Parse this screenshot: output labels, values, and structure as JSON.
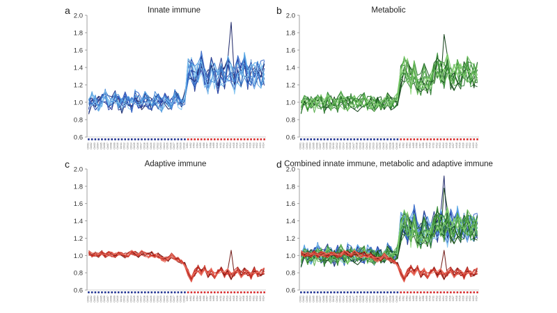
{
  "chart_data": [
    {
      "type": "line",
      "panel_letter": "a",
      "title": "Innate immune",
      "ylim": [
        0.6,
        2.0
      ],
      "yticks": [
        "0.6",
        "0.8",
        "1.0",
        "1.2",
        "1.4",
        "1.6",
        "1.8",
        "2.0"
      ],
      "grid": false,
      "colors": [
        "#1a2466",
        "#22348a",
        "#2c4bb0",
        "#3567c8",
        "#3f86d6",
        "#58a6e4",
        "#86c5f0"
      ],
      "summary_series": [
        {
          "name": "",
          "segment": "control",
          "values": [
            0.95,
            1.05,
            1.0,
            0.98,
            1.02,
            1.08,
            1.0,
            0.98,
            1.05,
            1.0,
            0.96,
            1.03,
            1.0,
            0.97,
            1.06,
            1.02,
            0.99,
            1.04,
            1.0,
            0.98,
            1.05,
            1.01,
            0.97,
            1.03,
            1.0,
            0.98,
            1.06,
            1.02,
            1.0,
            1.04
          ]
        },
        {
          "name": "",
          "segment": "case",
          "values": [
            1.35,
            1.4,
            1.28,
            1.32,
            1.45,
            1.3,
            1.22,
            1.38,
            1.3,
            1.25,
            1.35,
            1.28,
            1.4,
            1.32,
            1.25,
            1.38,
            1.3,
            1.42,
            1.28,
            1.35,
            1.3,
            1.36,
            1.32,
            1.34
          ]
        }
      ],
      "peak_value": 1.92,
      "min_value": 0.8,
      "n_control": 30,
      "n_case": 24
    },
    {
      "type": "line",
      "panel_letter": "b",
      "title": "Metabolic",
      "ylim": [
        0.6,
        2.0
      ],
      "yticks": [
        "0.6",
        "0.8",
        "1.0",
        "1.2",
        "1.4",
        "1.6",
        "1.8",
        "2.0"
      ],
      "grid": false,
      "colors": [
        "#0f3d14",
        "#1e5a22",
        "#2e7a32",
        "#3f963f",
        "#55ad4a",
        "#6fc45e",
        "#8fd77c"
      ],
      "summary_series": [
        {
          "name": "",
          "segment": "control",
          "values": [
            0.95,
            1.0,
            0.98,
            1.02,
            0.97,
            1.01,
            1.0,
            0.96,
            1.03,
            0.99,
            1.0,
            0.97,
            1.04,
            1.0,
            0.98,
            1.02,
            1.0,
            0.97,
            1.01,
            1.03,
            0.99,
            1.0,
            0.98,
            1.02,
            1.0,
            0.97,
            1.03,
            1.0,
            1.02,
            1.05
          ]
        },
        {
          "name": "",
          "segment": "case",
          "values": [
            1.28,
            1.38,
            1.35,
            1.25,
            1.32,
            1.22,
            1.18,
            1.3,
            1.24,
            1.2,
            1.32,
            1.42,
            1.36,
            1.3,
            1.4,
            1.3,
            1.28,
            1.36,
            1.3,
            1.34,
            1.38,
            1.32,
            1.3,
            1.33
          ]
        }
      ],
      "peak_value": 1.78,
      "min_value": 0.76,
      "n_control": 30,
      "n_case": 24
    },
    {
      "type": "line",
      "panel_letter": "c",
      "title": "Adaptive immune",
      "ylim": [
        0.6,
        2.0
      ],
      "yticks": [
        "0.6",
        "0.8",
        "1.0",
        "1.2",
        "1.4",
        "1.6",
        "1.8",
        "2.0"
      ],
      "grid": false,
      "colors": [
        "#6e1410",
        "#9a1d18",
        "#bd2a22",
        "#d43b2e",
        "#e25446",
        "#ec7a6c"
      ],
      "summary_series": [
        {
          "name": "",
          "segment": "control",
          "values": [
            1.03,
            1.01,
            1.02,
            1.0,
            1.03,
            1.0,
            1.02,
            1.01,
            1.0,
            1.03,
            1.02,
            1.0,
            1.01,
            1.04,
            1.02,
            1.0,
            1.03,
            1.01,
            1.0,
            1.02,
            0.99,
            1.0,
            0.97,
            0.95,
            0.96,
            1.0,
            0.97,
            0.95,
            0.93,
            0.9
          ]
        },
        {
          "name": "",
          "segment": "case",
          "values": [
            0.8,
            0.72,
            0.8,
            0.85,
            0.8,
            0.85,
            0.78,
            0.82,
            0.77,
            0.8,
            0.84,
            0.78,
            0.82,
            0.76,
            0.8,
            0.84,
            0.78,
            0.82,
            0.8,
            0.76,
            0.83,
            0.79,
            0.8,
            0.82
          ]
        }
      ],
      "peak_value": 1.06,
      "min_value": 0.66,
      "n_control": 30,
      "n_case": 24
    },
    {
      "type": "line",
      "panel_letter": "d",
      "title": "Combined innate immune, metabolic and adaptive immune",
      "ylim": [
        0.6,
        2.0
      ],
      "yticks": [
        "0.6",
        "0.8",
        "1.0",
        "1.2",
        "1.4",
        "1.6",
        "1.8",
        "2.0"
      ],
      "grid": false,
      "series_groups": [
        "innate",
        "metabolic",
        "adaptive"
      ],
      "n_control": 30,
      "n_case": 24
    }
  ],
  "sample_axis": {
    "control_label_prefix": "Ctrl",
    "case_label_prefix": "Inf",
    "control_marker_color": "#1c2f8f",
    "case_marker_color": "#d62728"
  }
}
